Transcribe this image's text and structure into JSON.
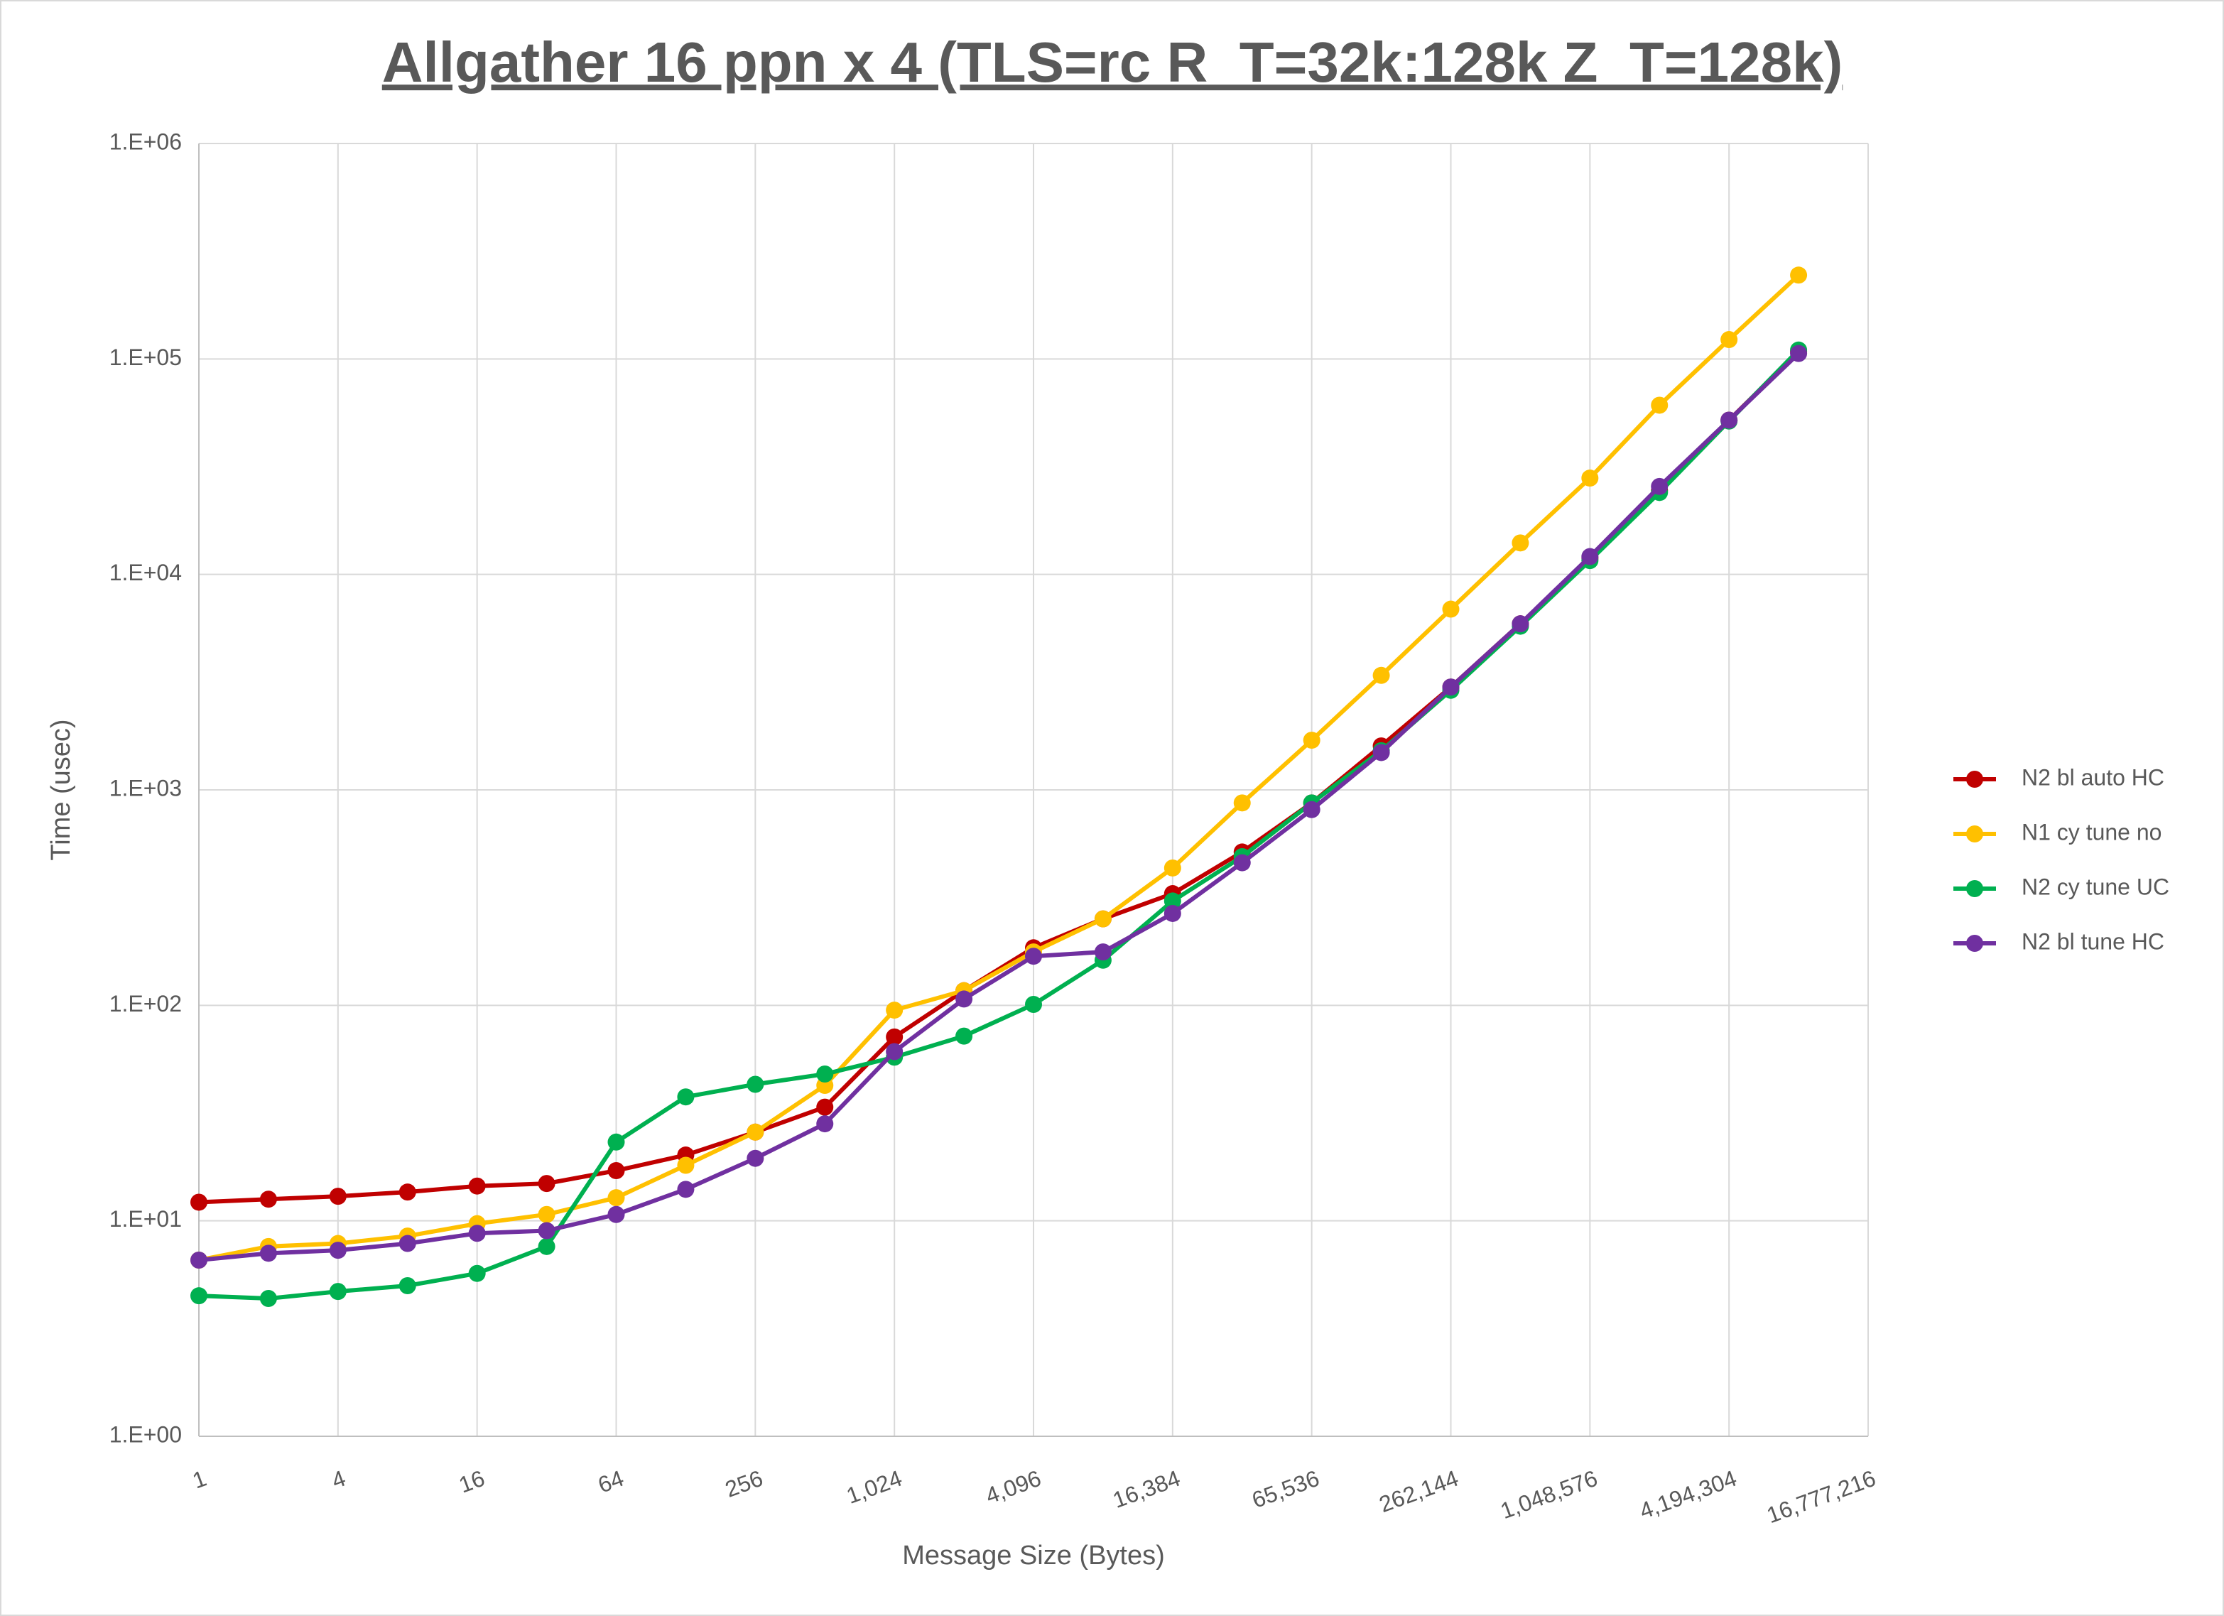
{
  "chart_data": {
    "type": "line",
    "title": "Allgather 16 ppn x 4 (TLS=rc R_T=32k:128k Z_T=128k)",
    "x_label": "Message Size (Bytes)",
    "y_label": "Time (usec)",
    "x": [
      1,
      2,
      4,
      8,
      16,
      32,
      64,
      128,
      256,
      512,
      1024,
      2048,
      4096,
      8192,
      16384,
      32768,
      65536,
      131072,
      262144,
      524288,
      1048576,
      2097152,
      4194304,
      8388608
    ],
    "series": [
      {
        "name": "N2 bl auto HC",
        "color": "#C00000",
        "values": [
          12.2,
          12.6,
          13.0,
          13.6,
          14.5,
          14.9,
          17.1,
          20.2,
          25.8,
          33.7,
          71.3,
          117,
          185,
          252,
          330,
          515,
          870,
          1600,
          3000,
          5900,
          11900,
          24500,
          52000,
          108000
        ]
      },
      {
        "name": "N1 cy tune no",
        "color": "#FFC000",
        "values": [
          6.57,
          7.6,
          7.85,
          8.5,
          9.7,
          10.7,
          12.8,
          18.1,
          25.8,
          42.5,
          95,
          117,
          177,
          252,
          434,
          870,
          1700,
          3400,
          6900,
          14000,
          28000,
          61000,
          123000,
          245000
        ]
      },
      {
        "name": "N2 cy tune UC",
        "color": "#00B050",
        "values": [
          4.49,
          4.36,
          4.7,
          5.0,
          5.7,
          7.6,
          23.2,
          37.6,
          43,
          48,
          57.5,
          72,
          101,
          162,
          305,
          490,
          870,
          1520,
          2900,
          5750,
          11600,
          24000,
          51500,
          110000
        ]
      },
      {
        "name": "N2 bl tune HC",
        "color": "#7030A0",
        "values": [
          6.57,
          7.07,
          7.3,
          7.85,
          8.75,
          9.0,
          10.7,
          14.0,
          19.5,
          28.2,
          61,
          107,
          169,
          177,
          267,
          459,
          810,
          1490,
          3000,
          5900,
          12100,
          25600,
          52000,
          106000
        ]
      }
    ],
    "x_log_scale": true,
    "y_log_scale": true,
    "xlim": [
      1,
      16777216
    ],
    "xticks": [
      1,
      4,
      16,
      64,
      256,
      {
        "value": 1024,
        "label": "1,024"
      },
      {
        "value": 4096,
        "label": "4,096"
      },
      {
        "value": 16384,
        "label": "16,384"
      },
      {
        "value": 65536,
        "label": "65,536"
      },
      {
        "value": 262144,
        "label": "262,144"
      },
      {
        "value": 1048576,
        "label": "1,048,576"
      },
      {
        "value": 4194304,
        "label": "4,194,304"
      },
      {
        "value": 16777216,
        "label": "16,777,216"
      }
    ],
    "ylim": [
      1,
      1000000
    ],
    "yticks": [
      {
        "value": 1,
        "label": "1.E+00"
      },
      {
        "value": 10,
        "label": "1.E+01"
      },
      {
        "value": 100,
        "label": "1.E+02"
      },
      {
        "value": 1000,
        "label": "1.E+03"
      },
      {
        "value": 10000,
        "label": "1.E+04"
      },
      {
        "value": 100000,
        "label": "1.E+05"
      },
      {
        "value": 1000000,
        "label": "1.E+06"
      }
    ],
    "grid": true,
    "legend_position": "right"
  }
}
